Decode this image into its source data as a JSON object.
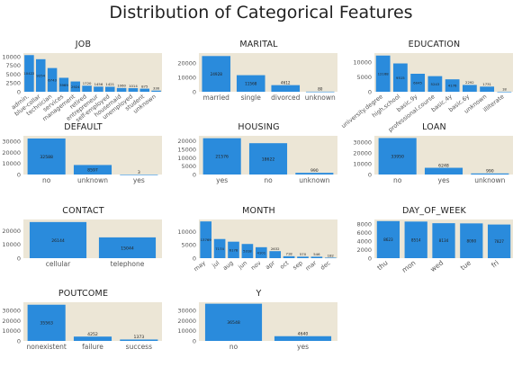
{
  "title": "Distribution of Categorical Features",
  "colors": {
    "bar": "#2a8bdc",
    "plot_bg": "#ece6d6",
    "text": "#555555"
  },
  "chart_data": [
    {
      "type": "bar",
      "title": "JOB",
      "ylim": [
        0,
        11000
      ],
      "yticks": [
        0,
        2500,
        5000,
        7500,
        10000
      ],
      "categories": [
        "admin.",
        "blue-collar",
        "technician",
        "services",
        "management",
        "retired",
        "entrepreneur",
        "self-employed",
        "housemaid",
        "unemployed",
        "student",
        "unknown"
      ],
      "values": [
        10422,
        9254,
        6743,
        3969,
        2924,
        1720,
        1456,
        1421,
        1060,
        1014,
        875,
        330
      ]
    },
    {
      "type": "bar",
      "title": "MARITAL",
      "ylim": [
        0,
        27000
      ],
      "yticks": [
        0,
        10000,
        20000
      ],
      "categories": [
        "married",
        "single",
        "divorced",
        "unknown"
      ],
      "values": [
        24928,
        11568,
        4612,
        80
      ]
    },
    {
      "type": "bar",
      "title": "EDUCATION",
      "ylim": [
        0,
        13000
      ],
      "yticks": [
        0,
        5000,
        10000
      ],
      "categories": [
        "university.degree",
        "high.school",
        "basic.9y",
        "professional.course",
        "basic.4y",
        "basic.6y",
        "unknown",
        "illiterate"
      ],
      "values": [
        12168,
        9515,
        6045,
        5243,
        4176,
        2292,
        1731,
        18
      ]
    },
    {
      "type": "bar",
      "title": "DEFAULT",
      "ylim": [
        0,
        35000
      ],
      "yticks": [
        0,
        10000,
        20000,
        30000
      ],
      "categories": [
        "no",
        "unknown",
        "yes"
      ],
      "values": [
        32588,
        8597,
        3
      ]
    },
    {
      "type": "bar",
      "title": "HOUSING",
      "ylim": [
        0,
        23000
      ],
      "yticks": [
        0,
        5000,
        10000,
        15000,
        20000
      ],
      "categories": [
        "yes",
        "no",
        "unknown"
      ],
      "values": [
        21576,
        18622,
        990
      ]
    },
    {
      "type": "bar",
      "title": "LOAN",
      "ylim": [
        0,
        36000
      ],
      "yticks": [
        0,
        10000,
        20000,
        30000
      ],
      "categories": [
        "no",
        "yes",
        "unknown"
      ],
      "values": [
        33950,
        6248,
        990
      ]
    },
    {
      "type": "bar",
      "title": "CONTACT",
      "ylim": [
        0,
        28000
      ],
      "yticks": [
        0,
        10000,
        20000
      ],
      "categories": [
        "cellular",
        "telephone"
      ],
      "values": [
        26144,
        15044
      ]
    },
    {
      "type": "bar",
      "title": "MONTH",
      "ylim": [
        0,
        14500
      ],
      "yticks": [
        0,
        5000,
        10000
      ],
      "categories": [
        "may",
        "jul",
        "aug",
        "jun",
        "nov",
        "apr",
        "oct",
        "sep",
        "mar",
        "dec"
      ],
      "values": [
        13769,
        7174,
        6178,
        5318,
        4101,
        2632,
        718,
        570,
        546,
        182
      ]
    },
    {
      "type": "bar",
      "title": "DAY_OF_WEEK",
      "ylim": [
        0,
        9000
      ],
      "yticks": [
        0,
        2000,
        4000,
        6000,
        8000
      ],
      "categories": [
        "thu",
        "mon",
        "wed",
        "tue",
        "fri"
      ],
      "values": [
        8623,
        8514,
        8134,
        8090,
        7827
      ]
    },
    {
      "type": "bar",
      "title": "POUTCOME",
      "ylim": [
        0,
        38000
      ],
      "yticks": [
        0,
        10000,
        20000,
        30000
      ],
      "categories": [
        "nonexistent",
        "failure",
        "success"
      ],
      "values": [
        35563,
        4252,
        1373
      ]
    },
    {
      "type": "bar",
      "title": "Y",
      "ylim": [
        0,
        38000
      ],
      "yticks": [
        0,
        10000,
        20000,
        30000
      ],
      "categories": [
        "no",
        "yes"
      ],
      "values": [
        36548,
        4640
      ]
    }
  ]
}
